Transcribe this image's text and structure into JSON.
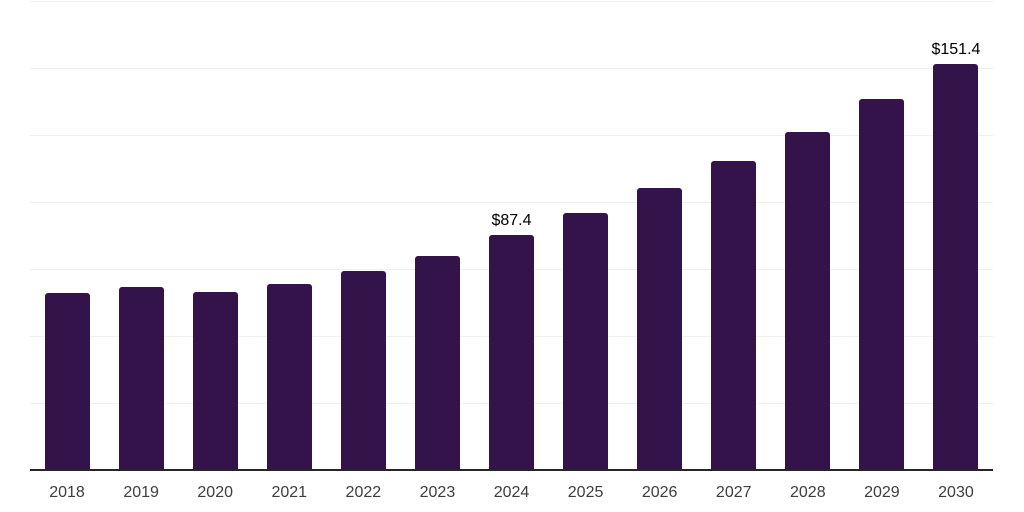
{
  "chart": {
    "background_color": "#ffffff",
    "colors": {
      "bar": "#34134b",
      "gridline": "#f0f0f0",
      "axis_line": "#262626",
      "tick_label": "#3d3d3d",
      "data_label": "#000000"
    }
  },
  "chart_data": {
    "type": "bar",
    "title": "",
    "xlabel": "",
    "ylabel": "",
    "categories": [
      "2018",
      "2019",
      "2020",
      "2021",
      "2022",
      "2023",
      "2024",
      "2025",
      "2026",
      "2027",
      "2028",
      "2029",
      "2030"
    ],
    "values": [
      65.8,
      68.0,
      66.2,
      69.3,
      73.9,
      79.6,
      87.4,
      95.8,
      105.0,
      115.1,
      126.1,
      138.2,
      151.4
    ],
    "data_labels": [
      "",
      "",
      "",
      "",
      "",
      "",
      "$87.4",
      "",
      "",
      "",
      "",
      "",
      "$151.4"
    ],
    "ylim": [
      0,
      175
    ],
    "grid_step": 25,
    "grid": "horizontal-only",
    "y_axis_tick_labels": "none",
    "legend": "none"
  }
}
